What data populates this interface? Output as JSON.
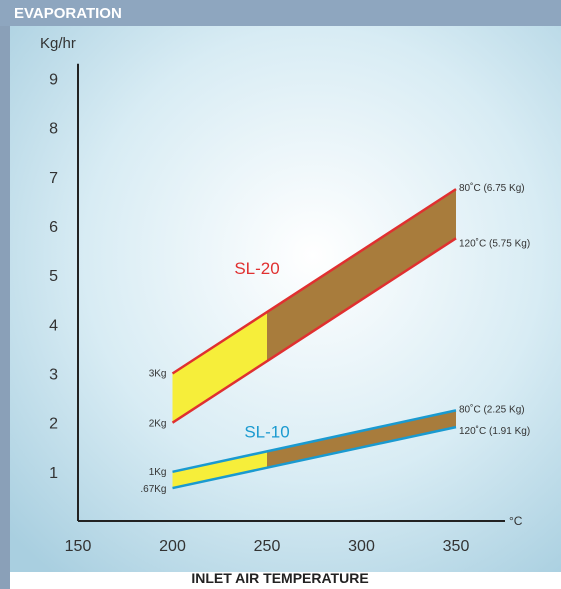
{
  "chart_data": {
    "type": "area",
    "title": "EVAPORATION",
    "ylabel": "Kg/hr",
    "xlabel": "INLET AIR TEMPERATURE",
    "x_unit": "°C",
    "xlim": [
      150,
      350
    ],
    "ylim": [
      0,
      9.6
    ],
    "x_ticks": [
      "150",
      "200",
      "250",
      "300",
      "350"
    ],
    "y_ticks": [
      "1",
      "2",
      "3",
      "4",
      "5",
      "6",
      "7",
      "8",
      "9"
    ],
    "series": [
      {
        "name": "SL-20",
        "line_color": "#e03030",
        "x": [
          200,
          350
        ],
        "upper": [
          3,
          6.75
        ],
        "lower": [
          2,
          5.75
        ],
        "labels": {
          "start_upper": "3Kg",
          "start_lower": "2Kg",
          "end_upper": "80˚C (6.75 Kg)",
          "end_lower": "120˚C (5.75 Kg)"
        }
      },
      {
        "name": "SL-10",
        "line_color": "#1a9ad0",
        "x": [
          200,
          350
        ],
        "upper": [
          1,
          2.25
        ],
        "lower": [
          0.67,
          1.91
        ],
        "labels": {
          "start_upper": "1Kg",
          "start_lower": ".67Kg",
          "end_upper": "80˚C (2.25 Kg)",
          "end_lower": "120˚C (1.91 Kg)"
        }
      }
    ],
    "fill_split_x": 250,
    "fill_colors": [
      "#f6ee3a",
      "#a87c3c"
    ],
    "grid": false,
    "legend": "none"
  }
}
